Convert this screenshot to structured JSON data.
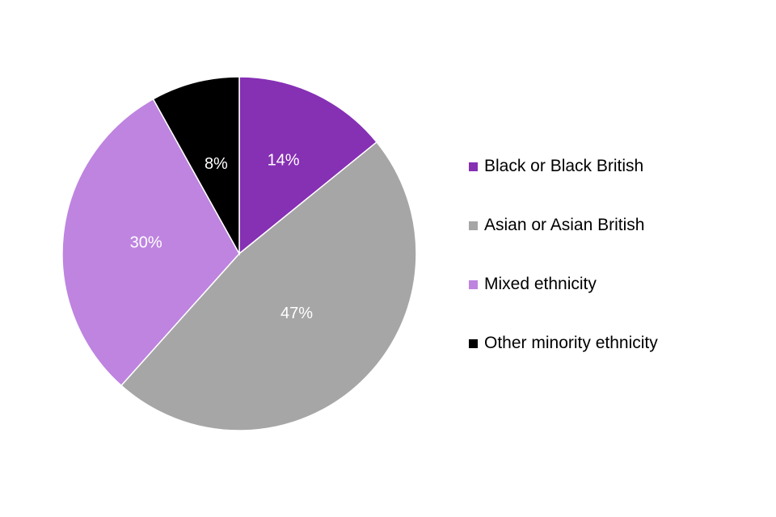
{
  "chart_data": {
    "type": "pie",
    "categories": [
      "Black or Black British",
      "Asian or Asian British",
      "Mixed ethnicity",
      "Other minority ethnicity"
    ],
    "values": [
      14,
      47,
      30,
      8
    ],
    "labels": [
      "14%",
      "47%",
      "30%",
      "8%"
    ],
    "colors": [
      "#8630B4",
      "#A6A6A6",
      "#BE84E0",
      "#000000"
    ],
    "label_colors": [
      "#ffffff",
      "#ffffff",
      "#ffffff",
      "#ffffff"
    ],
    "start_angle": "12 o'clock",
    "direction": "clockwise",
    "legend_position": "right"
  }
}
